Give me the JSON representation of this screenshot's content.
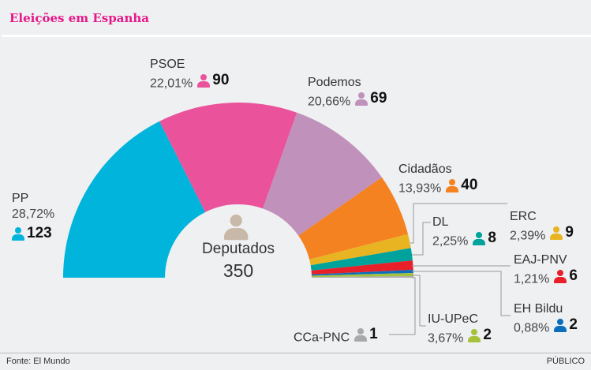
{
  "title": "Eleições em Espanha",
  "footer": {
    "source": "Fonte: El Mundo",
    "brand": "PÚBLICO"
  },
  "center": {
    "label": "Deputados",
    "total": "350"
  },
  "chart_data": {
    "type": "pie",
    "subtype": "half-donut",
    "title": "Eleições em Espanha",
    "total_seats": 350,
    "parties": [
      {
        "name": "PP",
        "pct": "28,72%",
        "seats": 123,
        "color": "#00b4dc"
      },
      {
        "name": "PSOE",
        "pct": "22,01%",
        "seats": 90,
        "color": "#ea529b"
      },
      {
        "name": "Podemos",
        "pct": "20,66%",
        "seats": 69,
        "color": "#c091bb"
      },
      {
        "name": "Cidadãos",
        "pct": "13,93%",
        "seats": 40,
        "color": "#f58220"
      },
      {
        "name": "ERC",
        "pct": "2,39%",
        "seats": 9,
        "color": "#e8b422"
      },
      {
        "name": "DL",
        "pct": "2,25%",
        "seats": 8,
        "color": "#00a39c"
      },
      {
        "name": "EAJ-PNV",
        "pct": "1,21%",
        "seats": 6,
        "color": "#e8202a"
      },
      {
        "name": "EH Bildu",
        "pct": "0,88%",
        "seats": 2,
        "color": "#0b6ebd"
      },
      {
        "name": "IU-UPeC",
        "pct": "3,67%",
        "seats": 2,
        "color": "#a6c23d"
      },
      {
        "name": "CCa-PNC",
        "pct": "",
        "seats": 1,
        "color": "#a9a9a9"
      }
    ]
  }
}
